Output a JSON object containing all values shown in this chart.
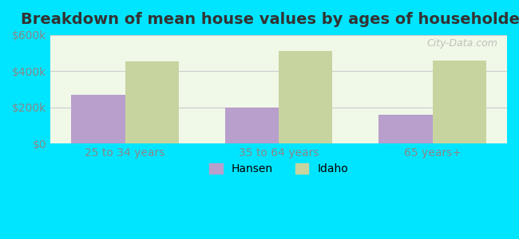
{
  "title": "Breakdown of mean house values by ages of householders",
  "categories": [
    "25 to 34 years",
    "35 to 64 years",
    "65 years+"
  ],
  "hansen_values": [
    270000,
    200000,
    160000
  ],
  "idaho_values": [
    455000,
    510000,
    460000
  ],
  "hansen_color": "#b89fcc",
  "idaho_color": "#c8d4a0",
  "background_outer": "#00e5ff",
  "background_inner": "#f0f8e8",
  "ylim": [
    0,
    600000
  ],
  "yticks": [
    0,
    200000,
    400000,
    600000
  ],
  "ytick_labels": [
    "$0",
    "$200k",
    "$400k",
    "$600k"
  ],
  "legend_hansen": "Hansen",
  "legend_idaho": "Idaho",
  "bar_width": 0.35,
  "title_fontsize": 14,
  "tick_fontsize": 10,
  "legend_fontsize": 10,
  "grid_color": "#cccccc",
  "watermark": "City-Data.com"
}
